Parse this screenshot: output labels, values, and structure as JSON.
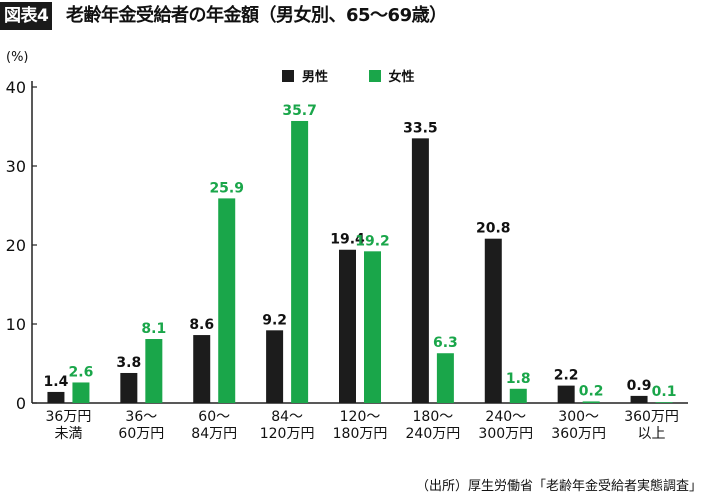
{
  "header": {
    "badge": "図表4",
    "title": "老齢年金受給者の年金額（男女別、65〜69歳）"
  },
  "source": "（出所）厚生労働省「老齢年金受給者実態調査」",
  "colors": {
    "male": "#1c1c1c",
    "female": "#1aa64a",
    "axis": "#222222"
  },
  "chart_data": {
    "type": "bar",
    "title": "老齢年金受給者の年金額（男女別、65〜69歳）",
    "ylabel": "(%)",
    "xlabel": "",
    "ylim": [
      0,
      40
    ],
    "yticks": [
      0,
      10,
      20,
      30,
      40
    ],
    "grid": false,
    "legend_position": "top-center",
    "categories": [
      [
        "36万円",
        "未満"
      ],
      [
        "36〜",
        "60万円"
      ],
      [
        "60〜",
        "84万円"
      ],
      [
        "84〜",
        "120万円"
      ],
      [
        "120〜",
        "180万円"
      ],
      [
        "180〜",
        "240万円"
      ],
      [
        "240〜",
        "300万円"
      ],
      [
        "300〜",
        "360万円"
      ],
      [
        "360万円",
        "以上"
      ]
    ],
    "series": [
      {
        "name": "男性",
        "values": [
          1.4,
          3.8,
          8.6,
          9.2,
          19.4,
          33.5,
          20.8,
          2.2,
          0.9
        ]
      },
      {
        "name": "女性",
        "values": [
          2.6,
          8.1,
          25.9,
          35.7,
          19.2,
          6.3,
          1.8,
          0.2,
          0.1
        ]
      }
    ]
  }
}
